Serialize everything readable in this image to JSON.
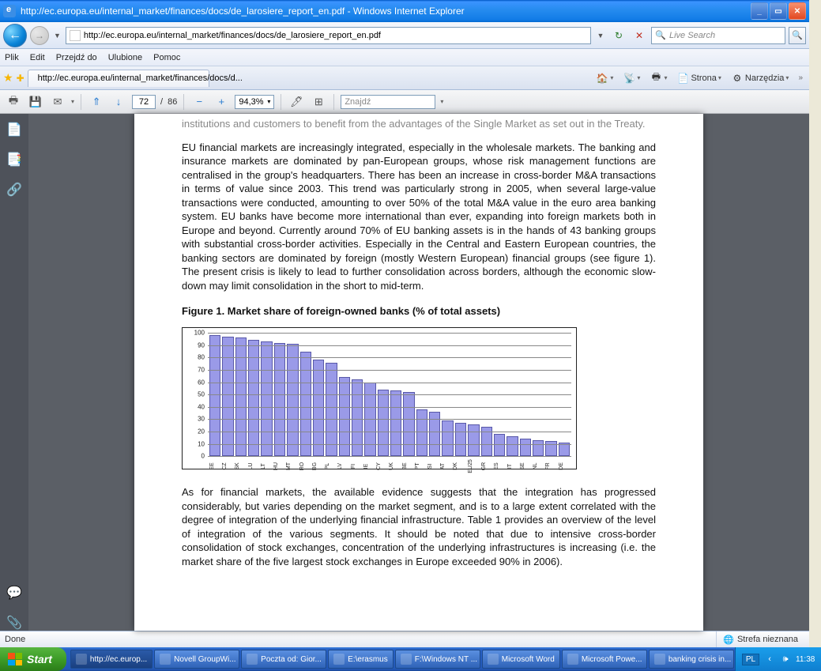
{
  "titlebar": {
    "title": "http://ec.europa.eu/internal_market/finances/docs/de_larosiere_report_en.pdf - Windows Internet Explorer"
  },
  "nav": {
    "address": "http://ec.europa.eu/internal_market/finances/docs/de_larosiere_report_en.pdf",
    "search_placeholder": "Live Search"
  },
  "menu": {
    "file": "Plik",
    "edit": "Edit",
    "goto": "Przejdź do",
    "fav": "Ulubione",
    "help": "Pomoc"
  },
  "tab": {
    "label": "http://ec.europa.eu/internal_market/finances/docs/d..."
  },
  "cmd": {
    "page": "Strona",
    "tools": "Narzędzia"
  },
  "pdf": {
    "page_current": "72",
    "page_sep": "/",
    "page_total": "86",
    "zoom": "94,3%",
    "find_placeholder": "Znajdź"
  },
  "doc": {
    "p0": "institutions and customers to benefit from the advantages of the Single Market as set out in the Treaty.",
    "p1": "EU financial markets are increasingly integrated, especially in the wholesale markets. The banking and insurance markets are dominated by pan-European groups, whose risk management functions are centralised in the group's headquarters. There has been an increase in cross-border M&A transactions in terms of value since 2003. This trend was particularly strong in 2005, when several large-value transactions were conducted, amounting to over 50% of the total M&A value in the euro area banking system. EU banks have become more international than ever, expanding into foreign markets both in Europe and beyond. Currently around 70% of EU banking assets is in the hands of 43 banking groups with substantial cross-border activities. Especially in the Central and Eastern European countries, the banking sectors are dominated by foreign (mostly Western European) financial groups (see figure 1). The present crisis is likely to lead to further consolidation across borders, although the economic slow-down may limit consolidation in the short to mid-term.",
    "figtitle": "Figure 1.  Market share of foreign-owned banks (% of total assets)",
    "p2": "As for financial markets, the available evidence suggests that the integration has progressed considerably, but varies depending on the market segment, and is to a large extent correlated with the degree of integration of the underlying financial infrastructure. Table 1 provides an overview of the level of integration of the various segments. It should be noted that due to intensive cross-border consolidation of stock exchanges, concentration of the underlying infrastructures is increasing (i.e. the market share of the five largest stock exchanges in Europe exceeded 90% in 2006)."
  },
  "chart": {
    "type": "bar",
    "ylim": [
      0,
      100
    ],
    "ytick_step": 10,
    "bar_color": "#9a9ae8",
    "bar_border": "#5858a8",
    "grid_color": "#888888",
    "categories": [
      "EE",
      "CZ",
      "SK",
      "LU",
      "LT",
      "HU",
      "MT",
      "RO",
      "BG",
      "PL",
      "LV",
      "FI",
      "IE",
      "CY",
      "UK",
      "BE",
      "PT",
      "SI",
      "AT",
      "DK",
      "EU25",
      "GR",
      "ES",
      "IT",
      "SE",
      "NL",
      "FR",
      "DE"
    ],
    "values": [
      98,
      97,
      96,
      94,
      93,
      92,
      91,
      85,
      78,
      76,
      64,
      62,
      60,
      54,
      53,
      52,
      38,
      36,
      29,
      27,
      26,
      24,
      18,
      16,
      14,
      13,
      12,
      11
    ]
  },
  "status": {
    "done": "Done",
    "zone": "Strefa nieznana"
  },
  "taskbar": {
    "start": "Start",
    "items": [
      "http://ec.europ...",
      "Novell GroupWi...",
      "Poczta od: Gior...",
      "E:\\erasmus",
      "F:\\Windows NT ...",
      "Microsoft Word",
      "Microsoft Powe...",
      "banking crisis in..."
    ],
    "lang": "PL",
    "clock": "11:38"
  }
}
